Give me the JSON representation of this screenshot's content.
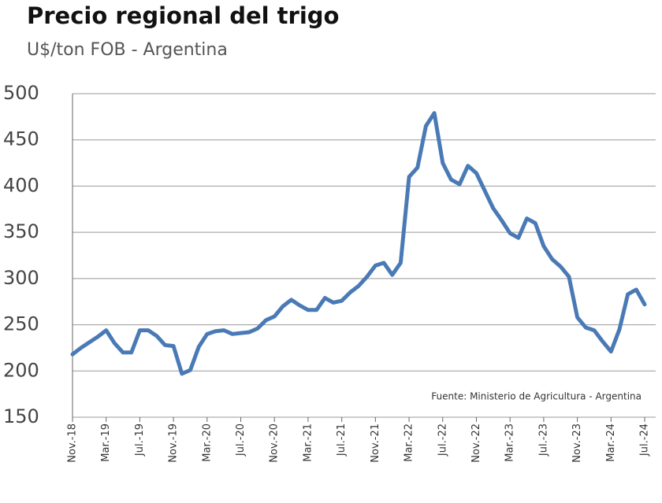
{
  "chart_data": {
    "type": "line",
    "title": "Precio regional del trigo",
    "subtitle": "U$/ton FOB - Argentina",
    "annotation": "Fuente:  Ministerio de Agricultura  - Argentina",
    "categories": [
      "Nov.-18",
      null,
      null,
      null,
      "Mar.-19",
      null,
      null,
      null,
      "Jul.-19",
      null,
      null,
      null,
      "Nov.-19",
      null,
      null,
      null,
      "Mar.-20",
      null,
      null,
      null,
      "Jul.-20",
      null,
      null,
      null,
      "Nov.-20",
      null,
      null,
      null,
      "Mar.-21",
      null,
      null,
      null,
      "Jul.-21",
      null,
      null,
      null,
      "Nov.-21",
      null,
      null,
      null,
      "Mar.-22",
      null,
      null,
      null,
      "Jul.-22",
      null,
      null,
      null,
      "Nov.-22",
      null,
      null,
      null,
      "Mar.-23",
      null,
      null,
      null,
      "Jul.-23",
      null,
      null,
      null,
      "Nov.-23",
      null,
      null,
      null,
      "Mar.-24",
      null,
      null,
      null,
      "Jul.-24"
    ],
    "values": [
      218,
      225,
      231,
      237,
      244,
      230,
      220,
      220,
      244,
      244,
      238,
      228,
      227,
      197,
      201,
      226,
      240,
      243,
      244,
      240,
      241,
      242,
      246,
      255,
      259,
      270,
      277,
      271,
      266,
      266,
      279,
      274,
      276,
      285,
      292,
      302,
      314,
      317,
      304,
      317,
      410,
      420,
      465,
      479,
      425,
      407,
      402,
      422,
      414,
      395,
      376,
      363,
      349,
      344,
      365,
      360,
      335,
      321,
      313,
      302,
      258,
      247,
      244,
      232,
      221,
      245,
      283,
      288,
      272
    ],
    "color": "#4a7ab5",
    "ylim": [
      150,
      500
    ],
    "yticks": [
      150,
      200,
      250,
      300,
      350,
      400,
      450,
      500
    ],
    "grid": true
  }
}
